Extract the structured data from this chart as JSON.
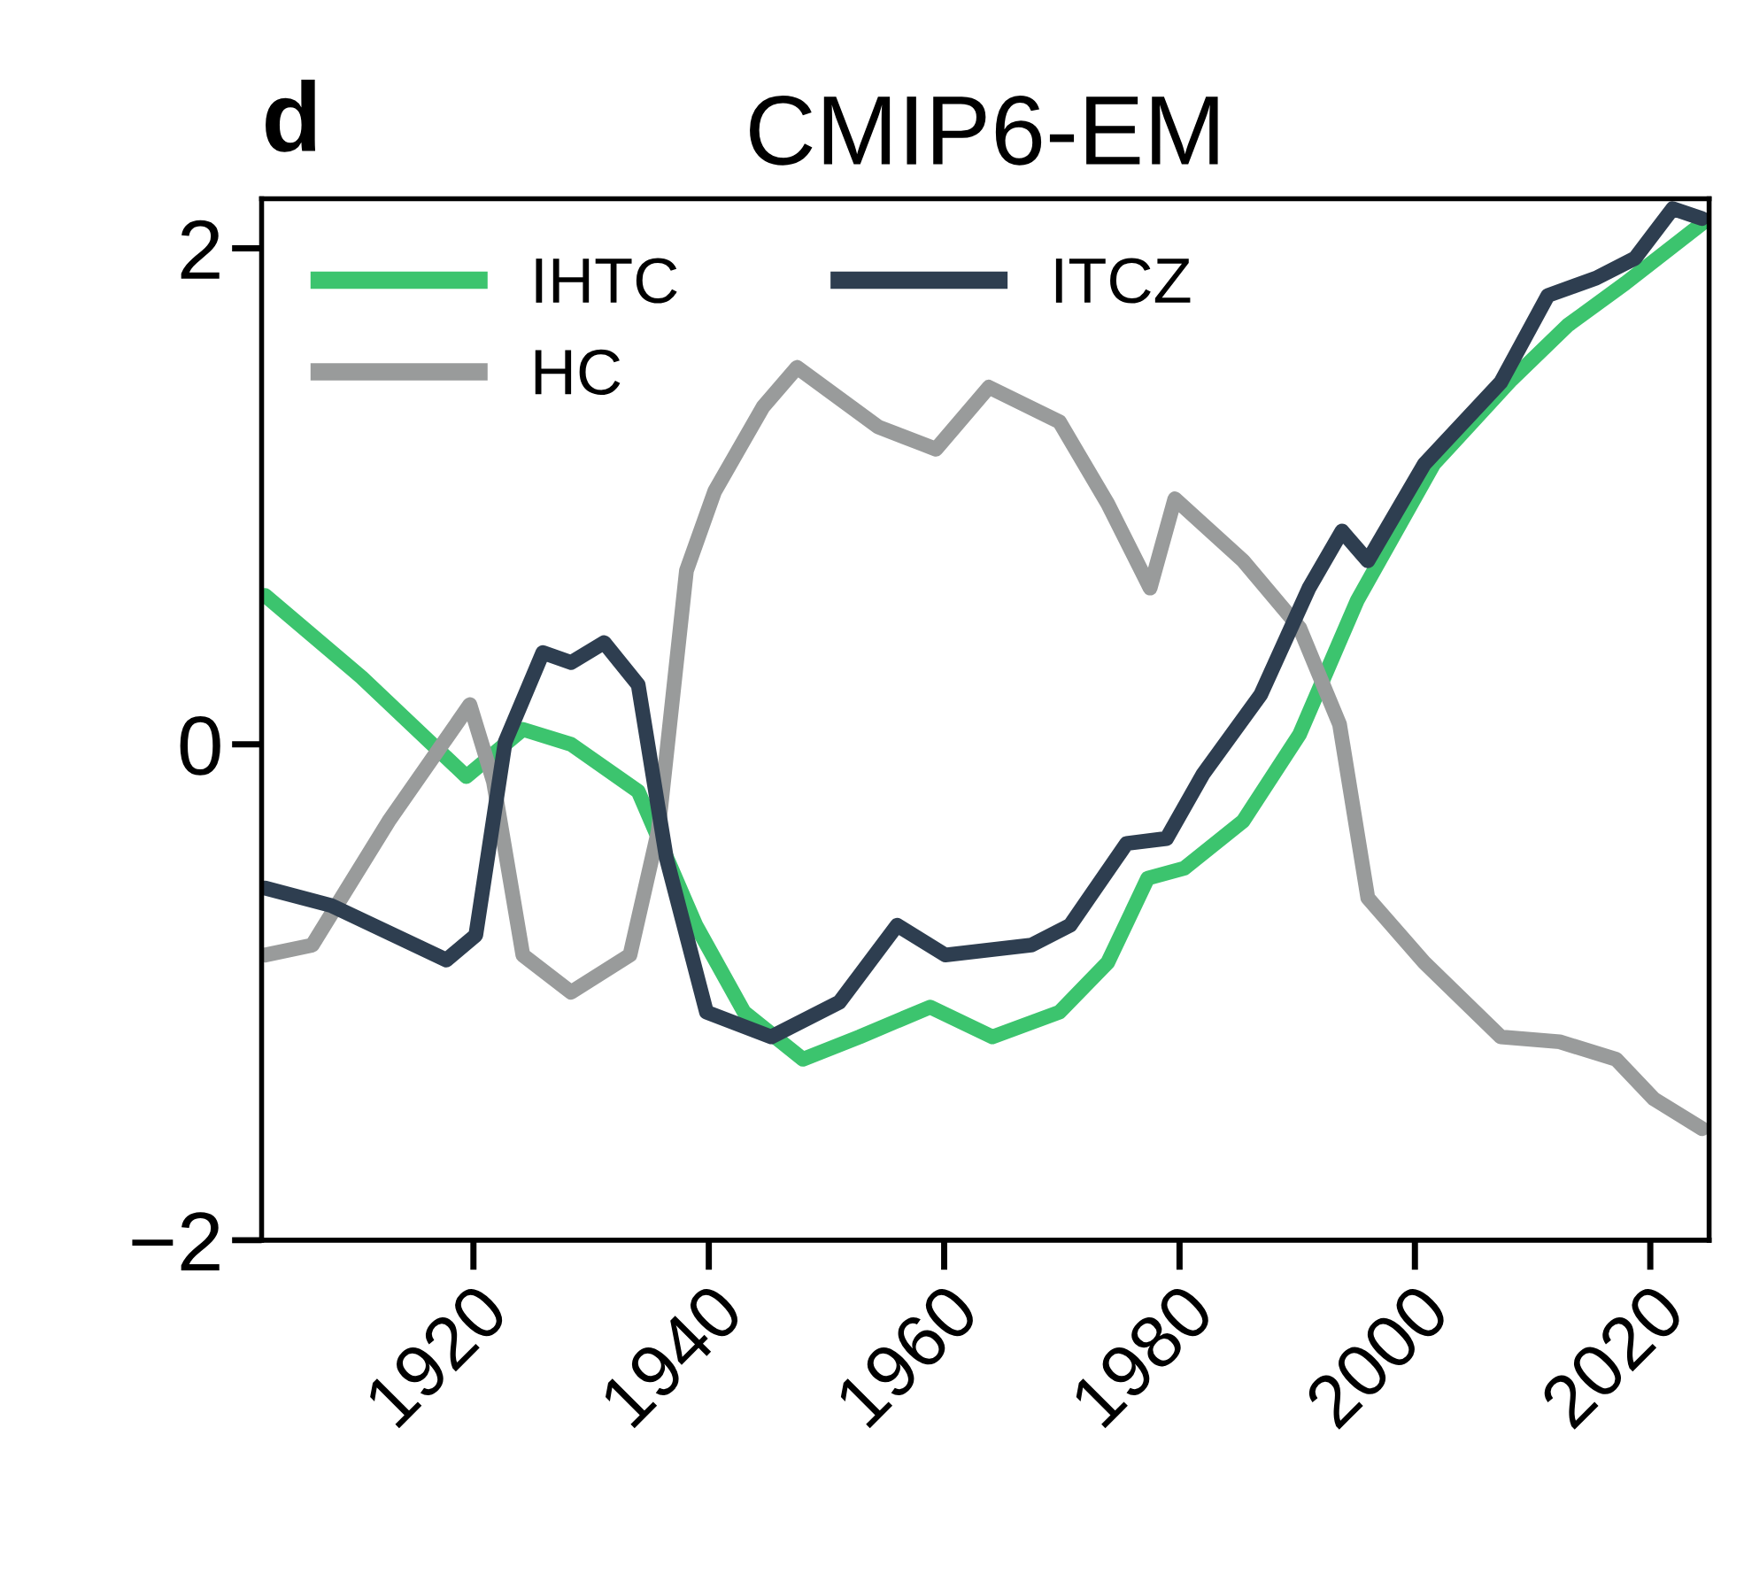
{
  "chart_data": {
    "type": "line",
    "title": "CMIP6-EM",
    "annotations": [
      "d"
    ],
    "xlim": [
      1902,
      2025
    ],
    "xticks": [
      1920,
      1940,
      1960,
      1980,
      2000,
      2020
    ],
    "ylim": [
      -2,
      2.2
    ],
    "yticks": [
      {
        "value": -2,
        "label": "−2"
      },
      0,
      2
    ],
    "grid": false,
    "legend": "top left",
    "marker": "none",
    "line_style": "solid",
    "series": [
      {
        "name": "IHTC",
        "color": "#3cc46e",
        "x": [
          1902.3,
          1910.5,
          1919.4,
          1924.2,
          1928.3,
          1934,
          1938.9,
          1943,
          1948,
          1952.8,
          1958.8,
          1964.1,
          1969.8,
          1973.9,
          1977.3,
          1980.4,
          1985.4,
          1990.2,
          1995.1,
          2001.6,
          2008.2,
          2013,
          2017.9,
          2024.4
        ],
        "values": [
          0.6,
          0.27,
          -0.13,
          0.06,
          0.0,
          -0.19,
          -0.73,
          -1.08,
          -1.27,
          -1.18,
          -1.06,
          -1.18,
          -1.08,
          -0.88,
          -0.54,
          -0.5,
          -0.31,
          0.04,
          0.58,
          1.13,
          1.47,
          1.69,
          1.86,
          2.1
        ]
      },
      {
        "name": "HC",
        "color": "#999b9b",
        "x": [
          1902.3,
          1906.3,
          1912.8,
          1919.7,
          1921.7,
          1924.2,
          1928.3,
          1933.3,
          1935.7,
          1938.1,
          1940.5,
          1944.6,
          1947.5,
          1954.4,
          1959.3,
          1963.8,
          1969.8,
          1973.9,
          1977.5,
          1979.6,
          1985.4,
          1990.2,
          1993.6,
          1996,
          2000.8,
          2007.3,
          2012.3,
          2017.1,
          2020.3,
          2024.4
        ],
        "values": [
          -0.85,
          -0.81,
          -0.31,
          0.16,
          -0.15,
          -0.85,
          -1.0,
          -0.85,
          -0.35,
          0.7,
          1.02,
          1.36,
          1.52,
          1.28,
          1.19,
          1.44,
          1.3,
          0.97,
          0.63,
          0.99,
          0.74,
          0.47,
          0.08,
          -0.62,
          -0.88,
          -1.18,
          -1.2,
          -1.27,
          -1.43,
          -1.55
        ]
      },
      {
        "name": "ITCZ",
        "color": "#2e3e50",
        "x": [
          1902.3,
          1907.9,
          1917.7,
          1920.2,
          1922.7,
          1925.9,
          1928.3,
          1931.1,
          1934,
          1936.4,
          1939.8,
          1945.3,
          1951.1,
          1956,
          1960.1,
          1967.4,
          1970.7,
          1975.5,
          1978.9,
          1982,
          1986.9,
          1991,
          1993.8,
          1996,
          2000.8,
          2007.3,
          2011.3,
          2015.4,
          2018.7,
          2021.9,
          2024.4
        ],
        "values": [
          -0.58,
          -0.65,
          -0.87,
          -0.77,
          0.01,
          0.37,
          0.33,
          0.41,
          0.24,
          -0.46,
          -1.08,
          -1.18,
          -1.04,
          -0.73,
          -0.85,
          -0.81,
          -0.73,
          -0.4,
          -0.38,
          -0.12,
          0.2,
          0.63,
          0.86,
          0.74,
          1.13,
          1.46,
          1.81,
          1.88,
          1.96,
          2.16,
          2.12
        ]
      }
    ]
  }
}
